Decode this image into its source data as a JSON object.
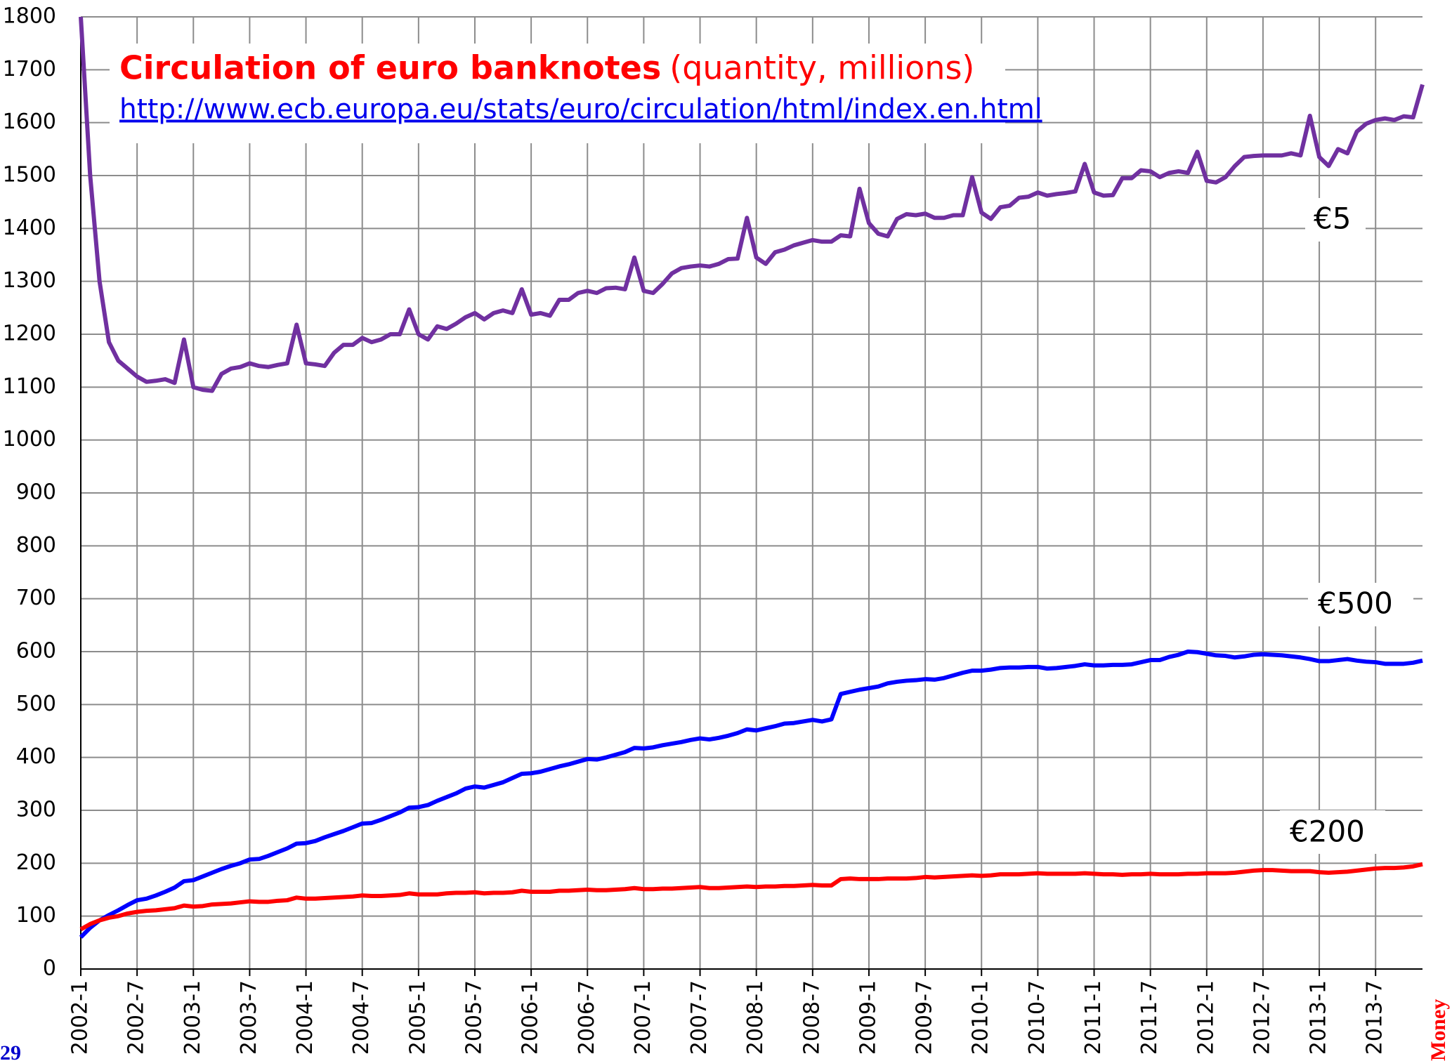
{
  "chart_data": {
    "type": "line",
    "title": "Circulation of euro banknotes",
    "subtitle": "(quantity, millions)",
    "source": "http://www.ecb.europa.eu/stats/euro/circulation/html/index.en.html",
    "annotations": [
      "€5",
      "€500",
      "€200"
    ],
    "page_number": "29",
    "footer": "Money",
    "categories": [
      "2002-1",
      null,
      null,
      null,
      null,
      null,
      "2002-7",
      null,
      null,
      null,
      null,
      null,
      "2003-1",
      null,
      null,
      null,
      null,
      null,
      "2003-7",
      null,
      null,
      null,
      null,
      null,
      "2004-1",
      null,
      null,
      null,
      null,
      null,
      "2004-7",
      null,
      null,
      null,
      null,
      null,
      "2005-1",
      null,
      null,
      null,
      null,
      null,
      "2005-7",
      null,
      null,
      null,
      null,
      null,
      "2006-1",
      null,
      null,
      null,
      null,
      null,
      "2006-7",
      null,
      null,
      null,
      null,
      null,
      "2007-1",
      null,
      null,
      null,
      null,
      null,
      "2007-7",
      null,
      null,
      null,
      null,
      null,
      "2008-1",
      null,
      null,
      null,
      null,
      null,
      "2008-7",
      null,
      null,
      null,
      null,
      null,
      "2009-1",
      null,
      null,
      null,
      null,
      null,
      "2009-7",
      null,
      null,
      null,
      null,
      null,
      "2010-1",
      null,
      null,
      null,
      null,
      null,
      "2010-7",
      null,
      null,
      null,
      null,
      null,
      "2011-1",
      null,
      null,
      null,
      null,
      null,
      "2011-7",
      null,
      null,
      null,
      null,
      null,
      "2012-1",
      null,
      null,
      null,
      null,
      null,
      "2012-7",
      null,
      null,
      null,
      null,
      null,
      "2013-1",
      null,
      null,
      null,
      null,
      null,
      "2013-7",
      null,
      null,
      null,
      null,
      null
    ],
    "series": [
      {
        "name": "€5",
        "color": "#7030a0",
        "values": [
          1800,
          1500,
          1300,
          1185,
          1150,
          1135,
          1120,
          1110,
          1112,
          1115,
          1108,
          1190,
          1100,
          1095,
          1093,
          1125,
          1135,
          1138,
          1145,
          1140,
          1138,
          1142,
          1145,
          1218,
          1145,
          1143,
          1140,
          1165,
          1180,
          1180,
          1193,
          1185,
          1190,
          1200,
          1200,
          1247,
          1200,
          1190,
          1215,
          1210,
          1220,
          1232,
          1240,
          1228,
          1240,
          1245,
          1240,
          1285,
          1237,
          1240,
          1235,
          1265,
          1265,
          1278,
          1282,
          1278,
          1287,
          1288,
          1285,
          1345,
          1282,
          1278,
          1295,
          1315,
          1325,
          1328,
          1330,
          1328,
          1333,
          1342,
          1343,
          1420,
          1345,
          1333,
          1355,
          1360,
          1368,
          1373,
          1378,
          1375,
          1375,
          1387,
          1385,
          1475,
          1410,
          1390,
          1385,
          1418,
          1427,
          1425,
          1428,
          1420,
          1420,
          1425,
          1425,
          1497,
          1430,
          1418,
          1440,
          1443,
          1458,
          1460,
          1468,
          1462,
          1465,
          1467,
          1470,
          1522,
          1468,
          1462,
          1463,
          1495,
          1495,
          1510,
          1508,
          1497,
          1505,
          1508,
          1505,
          1545,
          1490,
          1487,
          1497,
          1518,
          1535,
          1537,
          1538,
          1538,
          1538,
          1542,
          1538,
          1613,
          1535,
          1518,
          1550,
          1542,
          1583,
          1598,
          1605,
          1608,
          1605,
          1612,
          1610,
          1672
        ]
      },
      {
        "name": "€500",
        "color": "#0000ff",
        "values": [
          60,
          78,
          92,
          102,
          111,
          121,
          130,
          133,
          139,
          146,
          154,
          166,
          168,
          175,
          182,
          189,
          195,
          200,
          207,
          208,
          214,
          221,
          228,
          237,
          238,
          242,
          249,
          255,
          261,
          268,
          275,
          276,
          282,
          289,
          296,
          305,
          306,
          310,
          318,
          325,
          332,
          341,
          345,
          343,
          348,
          353,
          361,
          369,
          370,
          373,
          378,
          383,
          387,
          392,
          397,
          396,
          400,
          405,
          410,
          418,
          417,
          419,
          423,
          426,
          429,
          433,
          436,
          434,
          437,
          441,
          446,
          453,
          451,
          455,
          459,
          464,
          465,
          468,
          471,
          468,
          472,
          520,
          524,
          528,
          531,
          534,
          540,
          543,
          545,
          546,
          548,
          547,
          550,
          555,
          560,
          564,
          564,
          566,
          569,
          570,
          570,
          571,
          571,
          568,
          569,
          571,
          573,
          576,
          574,
          574,
          575,
          575,
          576,
          580,
          584,
          584,
          590,
          594,
          600,
          599,
          596,
          593,
          592,
          589,
          591,
          594,
          595,
          594,
          593,
          591,
          589,
          586,
          582,
          582,
          584,
          586,
          583,
          581,
          580,
          577,
          577,
          577,
          579,
          583
        ]
      },
      {
        "name": "€200",
        "color": "#ff0000",
        "values": [
          75,
          85,
          92,
          97,
          100,
          105,
          108,
          110,
          111,
          113,
          115,
          120,
          118,
          119,
          122,
          123,
          124,
          126,
          128,
          127,
          127,
          129,
          130,
          135,
          133,
          133,
          134,
          135,
          136,
          137,
          139,
          138,
          138,
          139,
          140,
          143,
          141,
          141,
          141,
          143,
          144,
          144,
          145,
          143,
          144,
          144,
          145,
          148,
          146,
          146,
          146,
          148,
          148,
          149,
          150,
          149,
          149,
          150,
          151,
          153,
          151,
          151,
          152,
          152,
          153,
          154,
          155,
          153,
          153,
          154,
          155,
          156,
          155,
          156,
          156,
          157,
          157,
          158,
          159,
          158,
          158,
          170,
          171,
          170,
          170,
          170,
          171,
          171,
          171,
          172,
          174,
          173,
          174,
          175,
          176,
          177,
          176,
          177,
          179,
          179,
          179,
          180,
          181,
          180,
          180,
          180,
          180,
          181,
          180,
          179,
          179,
          178,
          179,
          179,
          180,
          179,
          179,
          179,
          180,
          180,
          181,
          181,
          181,
          182,
          184,
          186,
          187,
          187,
          186,
          185,
          185,
          185,
          183,
          182,
          183,
          184,
          186,
          188,
          190,
          191,
          191,
          192,
          194,
          198
        ]
      }
    ],
    "ylim": [
      0,
      1800
    ],
    "yticks": [
      0,
      100,
      200,
      300,
      400,
      500,
      600,
      700,
      800,
      900,
      1000,
      1100,
      1200,
      1300,
      1400,
      1500,
      1600,
      1700,
      1800
    ],
    "grid": true
  }
}
